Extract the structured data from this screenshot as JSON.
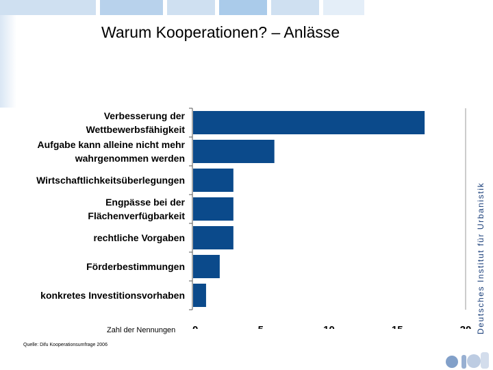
{
  "header": {
    "title": "Warum Kooperationen? – Anlässe",
    "bar_colors": [
      "#cfe0f1",
      "#b8d2ec",
      "#cfe0f1",
      "#aacbea",
      "#cfe0f1",
      "#e4eef8"
    ]
  },
  "chart_data": {
    "type": "bar",
    "orientation": "horizontal",
    "categories": [
      [
        "Verbesserung der",
        "Wettbewerbsfähigkeit"
      ],
      [
        "Aufgabe kann alleine nicht mehr",
        "wahrgenommen werden"
      ],
      [
        "Wirtschaftlichkeitsüberlegungen"
      ],
      [
        "Engpässe bei der",
        "Flächenverfügbarkeit"
      ],
      [
        "rechtliche Vorgaben"
      ],
      [
        "Förderbestimmungen"
      ],
      [
        "konkretes Investitionsvorhaben"
      ]
    ],
    "values": [
      17,
      6,
      3,
      3,
      3,
      2,
      1
    ],
    "xlim": [
      0,
      20
    ],
    "xticks": [
      "0",
      "5",
      "10",
      "15",
      "20"
    ],
    "xlabel": "Zahl der Nennungen",
    "bar_color": "#0b4a8b"
  },
  "footer": {
    "source": "Quelle: Difu Kooperationsumfrage 2006",
    "sidebar_text": "Deutsches Institut für Urbanistik",
    "logo_color": "#6c8fbf"
  }
}
